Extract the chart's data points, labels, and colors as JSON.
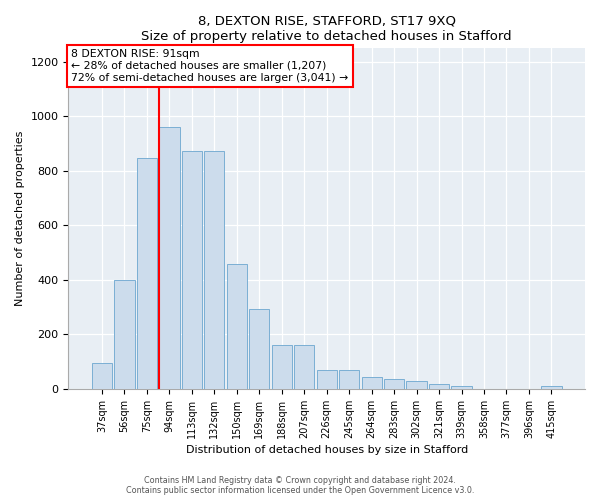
{
  "title": "8, DEXTON RISE, STAFFORD, ST17 9XQ",
  "subtitle": "Size of property relative to detached houses in Stafford",
  "xlabel": "Distribution of detached houses by size in Stafford",
  "ylabel": "Number of detached properties",
  "categories": [
    "37sqm",
    "56sqm",
    "75sqm",
    "94sqm",
    "113sqm",
    "132sqm",
    "150sqm",
    "169sqm",
    "188sqm",
    "207sqm",
    "226sqm",
    "245sqm",
    "264sqm",
    "283sqm",
    "302sqm",
    "321sqm",
    "339sqm",
    "358sqm",
    "377sqm",
    "396sqm",
    "415sqm"
  ],
  "values": [
    95,
    400,
    848,
    960,
    875,
    875,
    460,
    295,
    160,
    160,
    70,
    70,
    45,
    35,
    28,
    18,
    10,
    0,
    0,
    0,
    10
  ],
  "bar_color": "#ccdcec",
  "bar_edge_color": "#7bafd4",
  "vline_color": "red",
  "annotation_title": "8 DEXTON RISE: 91sqm",
  "annotation_line1": "← 28% of detached houses are smaller (1,207)",
  "annotation_line2": "72% of semi-detached houses are larger (3,041) →",
  "annotation_box_color": "white",
  "annotation_box_edge_color": "red",
  "ylim": [
    0,
    1250
  ],
  "yticks": [
    0,
    200,
    400,
    600,
    800,
    1000,
    1200
  ],
  "footer1": "Contains HM Land Registry data © Crown copyright and database right 2024.",
  "footer2": "Contains public sector information licensed under the Open Government Licence v3.0.",
  "bg_color": "#ffffff",
  "plot_bg_color": "#e8eef4"
}
